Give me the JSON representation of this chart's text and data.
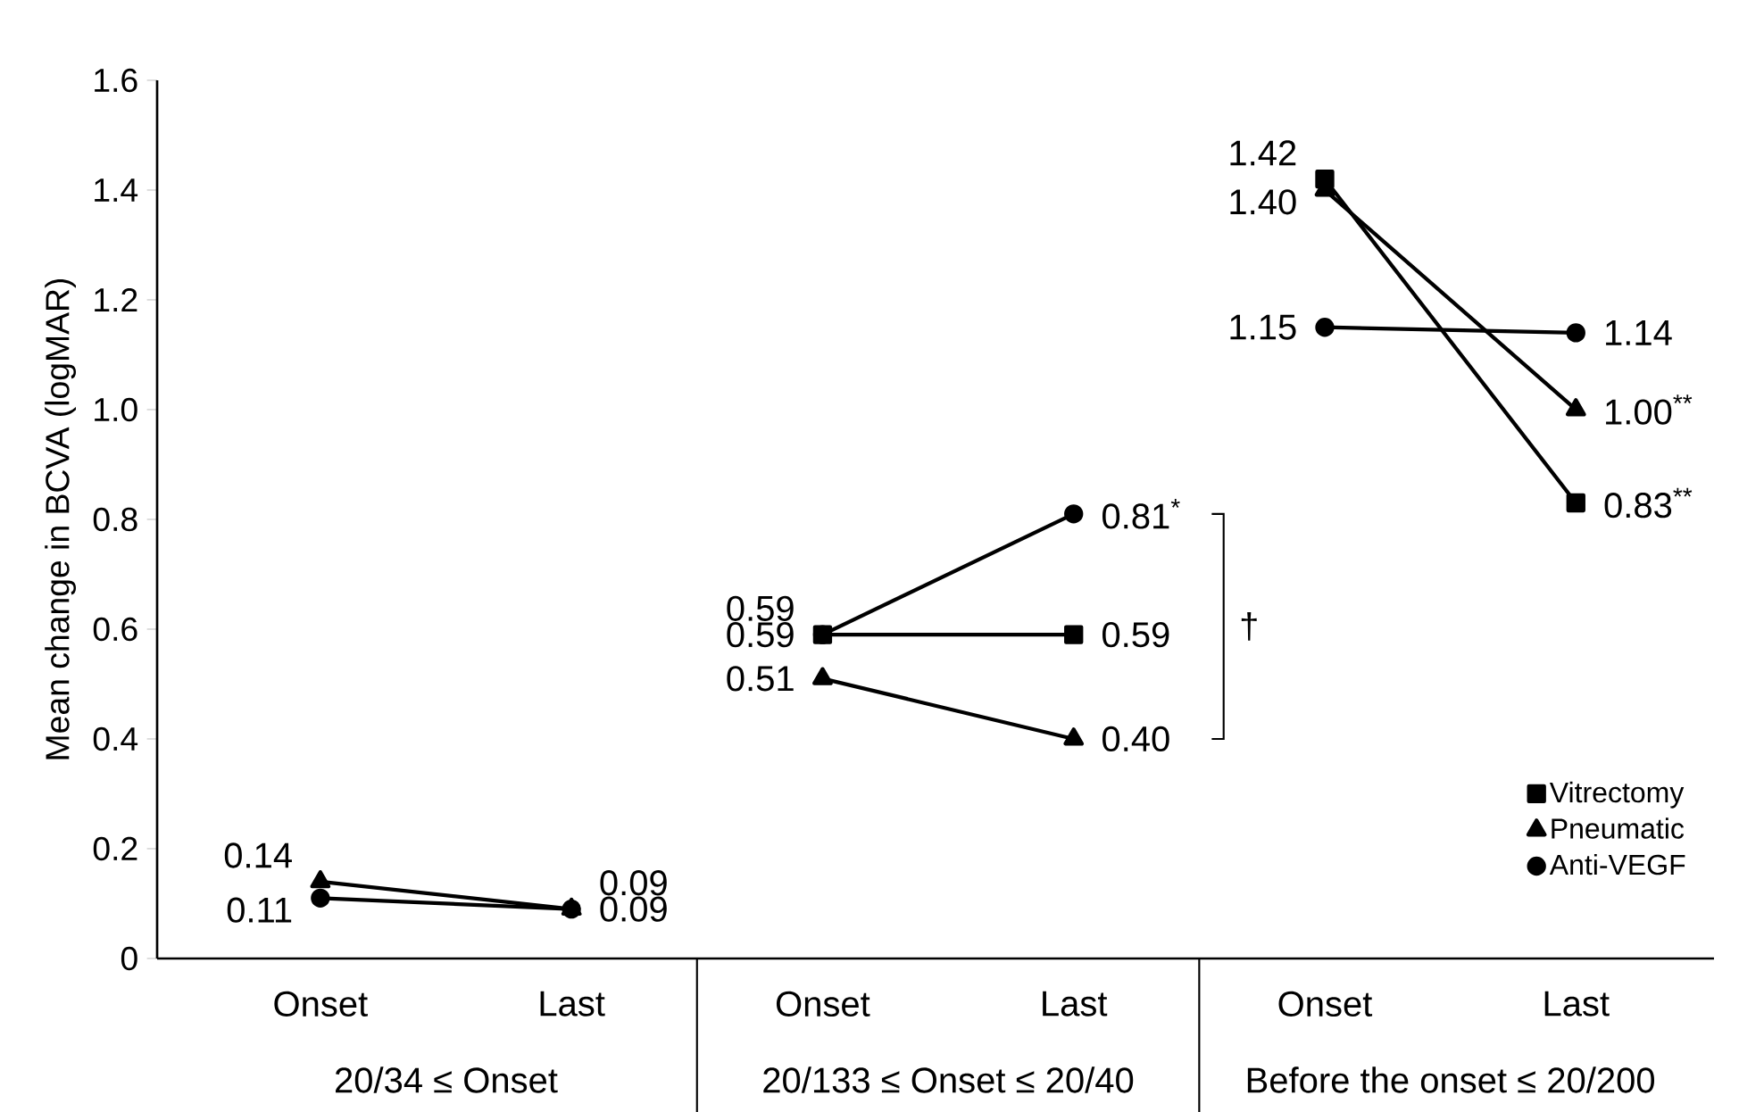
{
  "chart_data": {
    "type": "line",
    "ylabel": "Mean change in BCVA (logMAR)",
    "categories": [
      "Onset",
      "Last",
      "Onset",
      "Last",
      "Onset",
      "Last"
    ],
    "series": [
      {
        "name": "Vitrectomy",
        "color": "#000000",
        "marker": "square",
        "values": [
          null,
          null,
          0.59,
          0.59,
          1.42,
          0.83
        ],
        "value_labels": [
          null,
          null,
          "0.59",
          "0.59",
          "1.42",
          "0.83$^{**}$"
        ]
      },
      {
        "name": "Pneumatic",
        "color": "#000000",
        "marker": "triangle",
        "values": [
          0.14,
          0.09,
          0.51,
          0.4,
          1.4,
          1.0
        ],
        "value_labels": [
          "0.14",
          "0.09",
          "0.51",
          "0.40",
          "1.40",
          "1.00$^{**}$"
        ]
      },
      {
        "name": "Anti-VEGF",
        "color": "#000000",
        "marker": "circle",
        "values": [
          0.11,
          0.09,
          0.59,
          0.81,
          1.15,
          1.14
        ],
        "value_labels": [
          "0.11",
          "0.09",
          "0.59",
          "0.81$^{*}$",
          "1.15",
          "1.14"
        ]
      }
    ],
    "ylim": [
      0,
      1.6
    ],
    "yticks": [
      0,
      0.2,
      0.4,
      0.6,
      0.8,
      {
        "value": 1.0,
        "label": "1.0"
      },
      1.2,
      1.4,
      1.6
    ],
    "annotations": [
      "20/34 ≤ Onset",
      "20/133 ≤ Onset ≤ 20/40",
      "Before the onset ≤ 20/200",
      "†"
    ],
    "legend": "bottom right",
    "grid": false,
    "line_style": "solid"
  }
}
